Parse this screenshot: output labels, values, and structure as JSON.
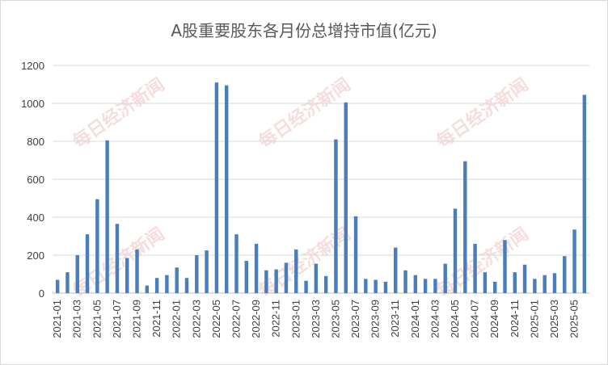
{
  "chart_data": {
    "type": "bar",
    "title": "A股重要股东各月份总增持市值(亿元)",
    "xlabel": "",
    "ylabel": "",
    "ylim": [
      0,
      1200
    ],
    "yticks": [
      0,
      200,
      400,
      600,
      800,
      1000,
      1200
    ],
    "grid": "horizontal",
    "bar_color": "#4a7ebb",
    "categories": [
      "2021-01",
      "2021-02",
      "2021-03",
      "2021-04",
      "2021-05",
      "2021-06",
      "2021-07",
      "2021-08",
      "2021-09",
      "2021-10",
      "2021-11",
      "2021-12",
      "2022-01",
      "2022-02",
      "2022-03",
      "2022-04",
      "2022-05",
      "2022-06",
      "2022-07",
      "2022-08",
      "2022-09",
      "2022-10",
      "2022-11",
      "2022-12",
      "2023-01",
      "2023-02",
      "2023-03",
      "2023-04",
      "2023-05",
      "2023-06",
      "2023-07",
      "2023-08",
      "2023-09",
      "2023-10",
      "2023-11",
      "2023-12",
      "2024-01",
      "2024-02",
      "2024-03",
      "2024-04",
      "2024-05",
      "2024-06",
      "2024-07",
      "2024-08",
      "2024-09",
      "2024-10",
      "2024-11",
      "2024-12",
      "2025-01",
      "2025-02",
      "2025-03",
      "2025-04",
      "2025-05",
      "2025-06"
    ],
    "tick_labels": [
      "2021-01",
      "2021-03",
      "2021-05",
      "2021-07",
      "2021-09",
      "2021-11",
      "2022-01",
      "2022-03",
      "2022-05",
      "2022-07",
      "2022-09",
      "2022-11",
      "2023-01",
      "2023-03",
      "2023-05",
      "2023-07",
      "2023-09",
      "2023-11",
      "2024-01",
      "2024-03",
      "2024-05",
      "2024-07",
      "2024-09",
      "2024-11",
      "2025-01",
      "2025-03",
      "2025-05"
    ],
    "values": [
      70,
      110,
      200,
      310,
      495,
      805,
      365,
      185,
      230,
      40,
      80,
      95,
      135,
      80,
      200,
      225,
      1110,
      1095,
      310,
      170,
      260,
      120,
      125,
      160,
      230,
      65,
      155,
      90,
      810,
      1005,
      405,
      75,
      70,
      60,
      240,
      120,
      95,
      75,
      75,
      155,
      445,
      695,
      260,
      110,
      60,
      280,
      110,
      150,
      75,
      95,
      105,
      195,
      335,
      1045
    ]
  },
  "watermark": "每日经济新闻"
}
